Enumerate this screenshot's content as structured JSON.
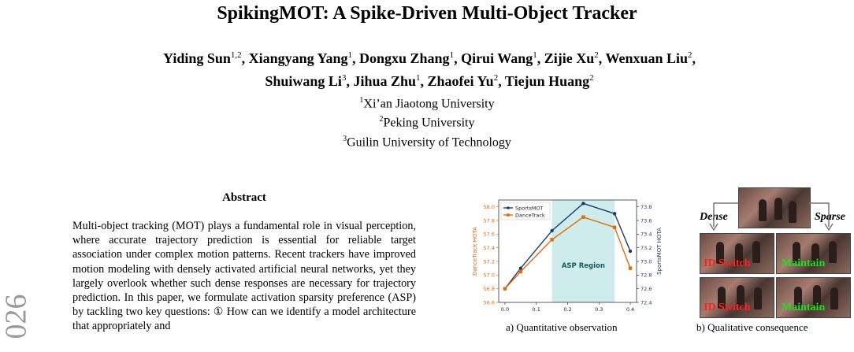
{
  "paper": {
    "title": "SpikingMOT: A Spike-Driven Multi-Object Tracker",
    "authors_line1": [
      {
        "name": "Yiding Sun",
        "aff": "1,2"
      },
      {
        "name": "Xiangyang Yang",
        "aff": "1"
      },
      {
        "name": "Dongxu Zhang",
        "aff": "1"
      },
      {
        "name": "Qirui Wang",
        "aff": "1"
      },
      {
        "name": "Zijie Xu",
        "aff": "2"
      },
      {
        "name": "Wenxuan Liu",
        "aff": "2"
      }
    ],
    "authors_line2": [
      {
        "name": "Shuiwang Li",
        "aff": "3"
      },
      {
        "name": "Jihua Zhu",
        "aff": "1"
      },
      {
        "name": "Zhaofei Yu",
        "aff": "2"
      },
      {
        "name": "Tiejun Huang",
        "aff": "2"
      }
    ],
    "affiliations": [
      {
        "num": "1",
        "name": "Xi’an Jiaotong University"
      },
      {
        "num": "2",
        "name": "Peking University"
      },
      {
        "num": "3",
        "name": "Guilin University of Technology"
      }
    ],
    "side_year": "026",
    "abstract_heading": "Abstract",
    "abstract_text": "Multi-object tracking (MOT) plays a fundamental role in visual perception, where accurate trajectory prediction is essential for reliable target association under complex motion patterns. Recent trackers have improved motion modeling with densely activated artificial neural networks, yet they largely overlook whether such dense responses are necessary for trajectory prediction. In this paper, we formulate activation sparsity preference (ASP) by tackling two key questions: ① How can we identify a model architecture that appropriately and"
  },
  "figure": {
    "caption_a": "a) Quantitative observation",
    "caption_b": "b) Qualitative consequence",
    "dense_label": "Dense",
    "sparse_label": "Sparse",
    "id_switch_label": "ID Switch",
    "maintain_label": "Maintain",
    "colors": {
      "sportsmot": "#1f3b6e",
      "dancetrack": "#e06c0a",
      "region": "#cdeceb",
      "id_switch": "#ff2020",
      "maintain": "#22dd22"
    }
  },
  "chart_data": {
    "type": "line",
    "x": [
      0.0,
      0.05,
      0.15,
      0.25,
      0.35,
      0.4
    ],
    "region_label": "ASP Region",
    "region": [
      0.15,
      0.35
    ],
    "xlim": [
      -0.02,
      0.42
    ],
    "xticks": [
      "0.0",
      "0.1",
      "0.2",
      "0.3",
      "0.4"
    ],
    "y_left": {
      "label": "DanceTrack HOTA",
      "lim": [
        56.6,
        58.1
      ],
      "ticks": [
        "56.6",
        "56.8",
        "57.0",
        "57.2",
        "57.4",
        "57.6",
        "57.8",
        "58.0"
      ]
    },
    "y_right": {
      "label": "SportsMOT HOTA",
      "lim": [
        72.4,
        73.9
      ],
      "ticks": [
        "72.4",
        "72.6",
        "72.8",
        "73.0",
        "73.2",
        "73.4",
        "73.6",
        "73.8"
      ]
    },
    "series": [
      {
        "name": "SportsMOT",
        "axis": "right",
        "values": [
          72.6,
          72.9,
          73.45,
          73.85,
          73.7,
          73.15
        ]
      },
      {
        "name": "DanceTrack",
        "axis": "left",
        "values": [
          56.8,
          57.05,
          57.52,
          57.85,
          57.7,
          57.1
        ]
      }
    ],
    "legend": "top-left",
    "grid": false
  }
}
